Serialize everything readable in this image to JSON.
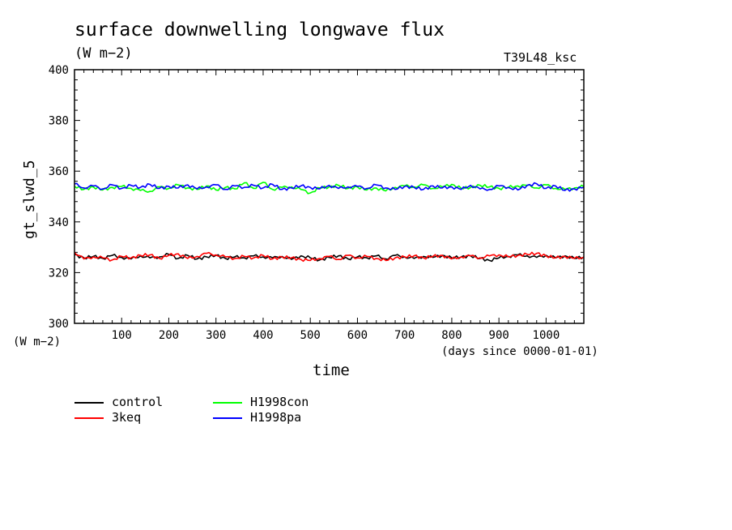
{
  "header": {
    "title": "surface downwelling longwave flux",
    "units": "(W m−2)",
    "run_name": "T39L48_ksc"
  },
  "axes": {
    "ylabel": "gt_slwd_5",
    "yunits": "(W m−2)",
    "xlabel": "time",
    "xunits": "(days since 0000-01-01)"
  },
  "chart_data": {
    "type": "line",
    "title": "surface downwelling longwave flux",
    "xlabel": "time",
    "ylabel": "gt_slwd_5",
    "xlim": [
      0,
      1080
    ],
    "ylim": [
      300,
      400
    ],
    "x_ticks": [
      100,
      200,
      300,
      400,
      500,
      600,
      700,
      800,
      900,
      1000
    ],
    "y_ticks": [
      300,
      320,
      340,
      360,
      380,
      400
    ],
    "grid": false,
    "legend_position": "bottom-left",
    "x": [
      0,
      20,
      40,
      60,
      80,
      100,
      120,
      140,
      160,
      180,
      200,
      220,
      240,
      260,
      280,
      300,
      320,
      340,
      360,
      380,
      400,
      420,
      440,
      460,
      480,
      500,
      520,
      540,
      560,
      580,
      600,
      620,
      640,
      660,
      680,
      700,
      720,
      740,
      760,
      780,
      800,
      820,
      840,
      860,
      880,
      900,
      920,
      940,
      960,
      980,
      1000,
      1020,
      1040,
      1060,
      1080
    ],
    "series": [
      {
        "name": "control",
        "color": "#000000",
        "values": [
          327.0,
          325.8,
          326.4,
          325.6,
          326.8,
          326.0,
          325.4,
          326.6,
          325.8,
          326.2,
          327.2,
          325.6,
          326.8,
          325.4,
          326.2,
          326.8,
          325.6,
          326.2,
          325.8,
          326.6,
          326.2,
          325.8,
          326.4,
          325.2,
          326.6,
          325.8,
          325.0,
          326.0,
          326.6,
          325.4,
          326.2,
          325.8,
          326.6,
          325.4,
          326.8,
          326.2,
          325.6,
          326.4,
          326.0,
          326.8,
          325.8,
          326.2,
          326.6,
          325.6,
          324.8,
          325.8,
          326.4,
          327.0,
          326.6,
          326.0,
          326.8,
          325.8,
          326.6,
          325.6,
          326.2
        ]
      },
      {
        "name": "3keq",
        "color": "#ff0000",
        "values": [
          328.0,
          325.4,
          326.2,
          325.8,
          325.0,
          326.4,
          325.8,
          326.8,
          327.0,
          325.6,
          326.8,
          327.4,
          325.6,
          326.4,
          327.6,
          327.0,
          326.2,
          325.6,
          326.4,
          325.8,
          326.8,
          325.4,
          326.2,
          325.8,
          325.2,
          324.8,
          325.6,
          326.4,
          325.2,
          326.8,
          325.8,
          326.4,
          325.6,
          324.8,
          325.8,
          326.2,
          326.6,
          325.8,
          326.4,
          326.8,
          325.4,
          326.2,
          326.6,
          325.8,
          326.6,
          327.0,
          326.2,
          326.8,
          327.2,
          327.6,
          326.6,
          325.8,
          326.4,
          325.6,
          326.0
        ]
      },
      {
        "name": "H1998con",
        "color": "#00ff00",
        "values": [
          354.0,
          352.8,
          353.8,
          352.6,
          353.6,
          354.0,
          353.2,
          352.4,
          352.0,
          353.8,
          353.2,
          354.6,
          353.4,
          352.8,
          354.2,
          352.6,
          353.6,
          353.0,
          355.4,
          353.2,
          355.6,
          352.8,
          353.6,
          353.8,
          352.8,
          351.4,
          353.4,
          353.8,
          354.4,
          353.2,
          353.8,
          352.6,
          353.4,
          352.2,
          353.6,
          354.2,
          353.8,
          354.6,
          353.2,
          353.8,
          354.8,
          353.2,
          353.6,
          354.4,
          353.8,
          353.2,
          353.6,
          354.2,
          354.4,
          353.4,
          354.6,
          353.2,
          352.8,
          353.4,
          354.0
        ]
      },
      {
        "name": "H1998pa",
        "color": "#0000ff",
        "values": [
          355.0,
          353.4,
          354.2,
          353.0,
          354.6,
          353.2,
          354.4,
          353.6,
          354.8,
          353.2,
          354.0,
          353.4,
          354.6,
          353.0,
          353.8,
          354.6,
          352.8,
          354.2,
          353.6,
          354.4,
          353.4,
          354.8,
          352.8,
          353.4,
          354.2,
          353.6,
          353.0,
          354.4,
          353.2,
          353.8,
          354.0,
          353.2,
          354.6,
          353.4,
          352.8,
          354.0,
          353.6,
          352.8,
          354.2,
          353.4,
          353.8,
          352.8,
          354.4,
          353.0,
          352.8,
          354.2,
          353.6,
          352.6,
          354.4,
          355.0,
          353.2,
          354.2,
          352.4,
          353.0,
          353.6
        ]
      }
    ]
  }
}
